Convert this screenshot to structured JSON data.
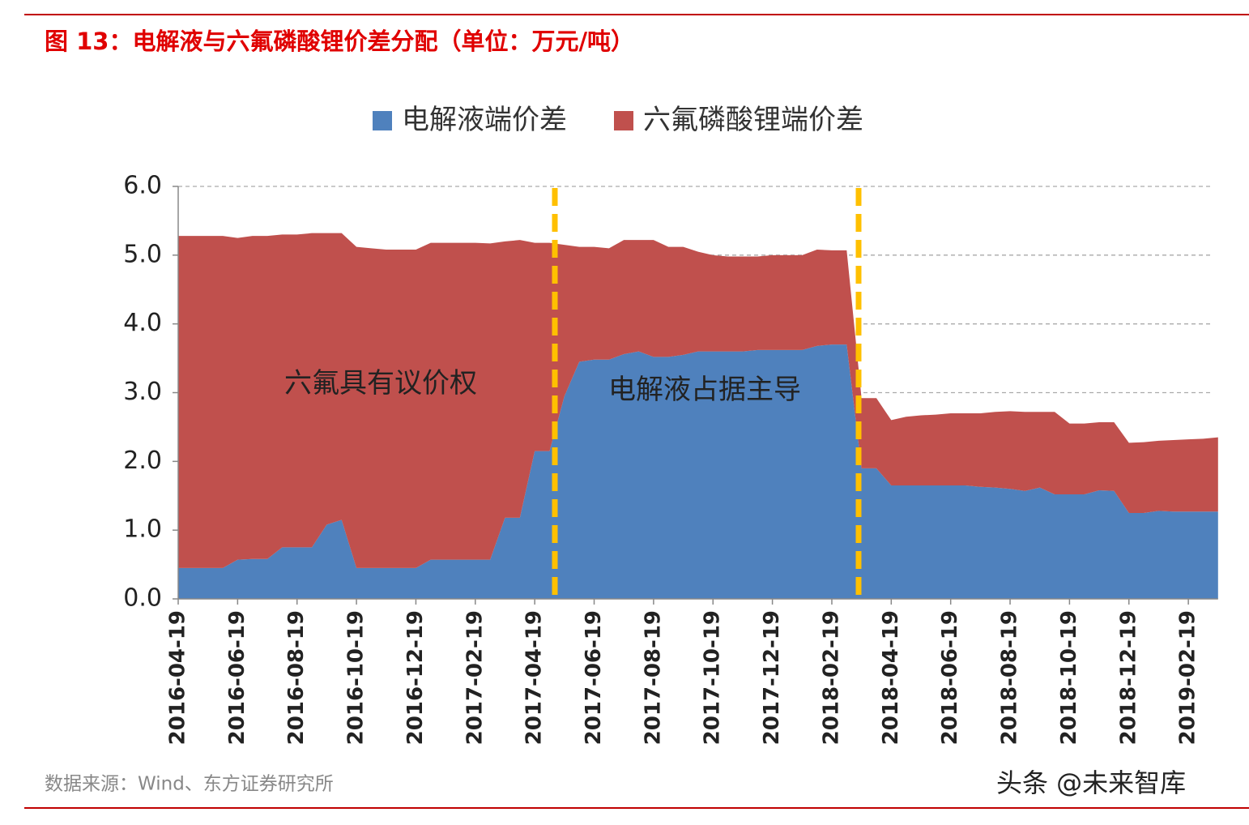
{
  "chart_data": {
    "type": "stacked_area",
    "title": "图 13：电解液与六氟磷酸锂价差分配（单位：万元/吨）",
    "categories": [
      "2016-04-19",
      null,
      null,
      null,
      "2016-06-19",
      null,
      null,
      null,
      "2016-08-19",
      null,
      null,
      null,
      "2016-10-19",
      null,
      null,
      null,
      "2016-12-19",
      null,
      null,
      null,
      "2017-02-19",
      null,
      null,
      null,
      "2017-04-19",
      null,
      null,
      null,
      "2017-06-19",
      null,
      null,
      null,
      "2017-08-19",
      null,
      null,
      null,
      "2017-10-19",
      null,
      null,
      null,
      "2017-12-19",
      null,
      null,
      null,
      "2018-02-19",
      null,
      null,
      null,
      "2018-04-19",
      null,
      null,
      null,
      "2018-06-19",
      null,
      null,
      null,
      "2018-08-19",
      null,
      null,
      null,
      "2018-10-19",
      null,
      null,
      null,
      "2018-12-19",
      null,
      null,
      null,
      "2019-02-19",
      null,
      null
    ],
    "series": [
      {
        "name": "电解液端价差",
        "color": "#4f81bd",
        "values": [
          0.45,
          0.45,
          0.45,
          0.45,
          0.57,
          0.58,
          0.58,
          0.75,
          0.75,
          0.75,
          1.08,
          1.15,
          0.45,
          0.45,
          0.45,
          0.45,
          0.45,
          0.57,
          0.57,
          0.57,
          0.57,
          0.57,
          1.18,
          1.18,
          2.15,
          2.15,
          2.95,
          3.45,
          3.48,
          3.48,
          3.56,
          3.6,
          3.52,
          3.52,
          3.55,
          3.6,
          3.6,
          3.6,
          3.6,
          3.62,
          3.62,
          3.62,
          3.62,
          3.68,
          3.7,
          3.7,
          1.9,
          1.9,
          1.65,
          1.65,
          1.65,
          1.65,
          1.65,
          1.65,
          1.63,
          1.62,
          1.6,
          1.57,
          1.62,
          1.52,
          1.52,
          1.52,
          1.58,
          1.57,
          1.25,
          1.25,
          1.28,
          1.27,
          1.27,
          1.27,
          1.27
        ]
      },
      {
        "name": "六氟磷酸锂端价差",
        "color": "#c0504d",
        "values": [
          4.83,
          4.83,
          4.83,
          4.83,
          4.68,
          4.7,
          4.7,
          4.55,
          4.55,
          4.57,
          4.24,
          4.17,
          4.67,
          4.65,
          4.63,
          4.63,
          4.63,
          4.61,
          4.61,
          4.61,
          4.61,
          4.6,
          4.02,
          4.04,
          3.03,
          3.03,
          2.2,
          1.67,
          1.64,
          1.62,
          1.66,
          1.62,
          1.7,
          1.6,
          1.57,
          1.45,
          1.4,
          1.38,
          1.38,
          1.36,
          1.38,
          1.38,
          1.38,
          1.4,
          1.37,
          1.37,
          1.02,
          1.02,
          0.95,
          1.0,
          1.02,
          1.03,
          1.05,
          1.05,
          1.07,
          1.1,
          1.13,
          1.15,
          1.1,
          1.2,
          1.03,
          1.03,
          0.99,
          1.0,
          1.02,
          1.03,
          1.02,
          1.04,
          1.05,
          1.06,
          1.08
        ]
      }
    ],
    "ylim": [
      0,
      6
    ],
    "yticks": [
      {
        "value": 0,
        "label": "0.0"
      },
      {
        "value": 1,
        "label": "1.0"
      },
      {
        "value": 2,
        "label": "2.0"
      },
      {
        "value": 3,
        "label": "3.0"
      },
      {
        "value": 4,
        "label": "4.0"
      },
      {
        "value": 5,
        "label": "5.0"
      },
      {
        "value": 6,
        "label": "6.0"
      }
    ],
    "grid": true,
    "legend": "top",
    "annotations": [
      "六氟具有议价权",
      "电解液占据主导"
    ],
    "source": "数据来源：Wind、东方证券研究所",
    "watermark": "头条 @未来智库"
  }
}
